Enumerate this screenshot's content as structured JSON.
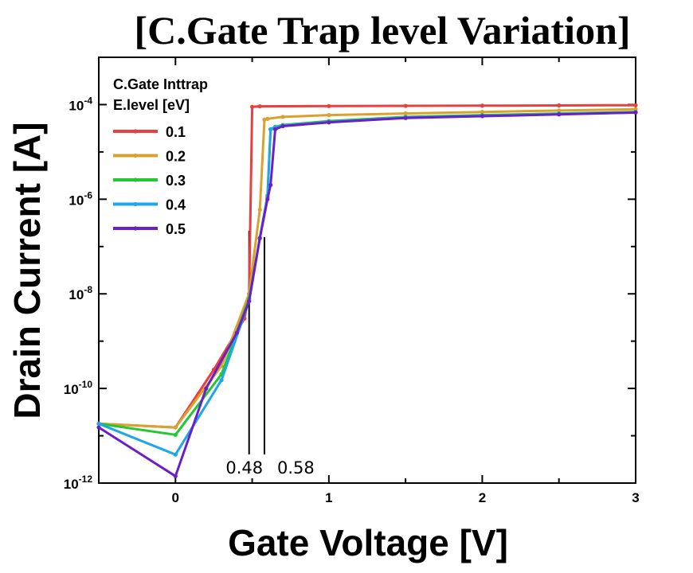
{
  "chart_data": {
    "type": "line",
    "title": "[C.Gate Trap level Variation]",
    "xlabel": "Gate Voltage [V]",
    "ylabel": "Drain Current [A]",
    "xlim": [
      -0.5,
      3
    ],
    "ylim_log10": [
      -12,
      -3
    ],
    "y_scale": "log",
    "x_ticks": [
      0,
      1,
      2,
      3
    ],
    "y_ticks": [
      {
        "exp": -12,
        "base": "10",
        "power": "-12"
      },
      {
        "exp": -10,
        "base": "10",
        "power": "-10"
      },
      {
        "exp": -8,
        "base": "10",
        "power": "-8"
      },
      {
        "exp": -6,
        "base": "10",
        "power": "-6"
      },
      {
        "exp": -4,
        "base": "10",
        "power": "-4"
      }
    ],
    "legend": {
      "title_lines": [
        "C.Gate Inttrap",
        "E.level [eV]"
      ],
      "placement": "top-left"
    },
    "series": [
      {
        "name": "0.1",
        "color": "#e8403f",
        "x": [
          -0.5,
          0.0,
          0.25,
          0.45,
          0.48,
          0.5,
          0.55,
          1.0,
          1.5,
          2.0,
          2.5,
          3.0
        ],
        "y": [
          1.8e-11,
          1.5e-11,
          2.5e-10,
          3e-09,
          1e-08,
          9e-05,
          9.2e-05,
          9.3e-05,
          9.4e-05,
          9.5e-05,
          9.6e-05,
          9.7e-05
        ]
      },
      {
        "name": "0.2",
        "color": "#daa12e",
        "x": [
          -0.5,
          0.0,
          0.3,
          0.48,
          0.55,
          0.58,
          0.6,
          0.7,
          1.0,
          1.5,
          2.0,
          2.5,
          3.0
        ],
        "y": [
          1.8e-11,
          1.5e-11,
          3e-10,
          1e-08,
          6e-07,
          4.8e-05,
          5e-05,
          5.5e-05,
          6e-05,
          6.5e-05,
          7e-05,
          7.5e-05,
          8e-05
        ]
      },
      {
        "name": "0.3",
        "color": "#22c832",
        "x": [
          -0.5,
          0.0,
          0.3,
          0.48,
          0.55,
          0.6,
          0.62,
          0.65,
          0.7,
          1.0,
          1.5,
          2.0,
          2.5,
          3.0
        ],
        "y": [
          1.8e-11,
          1.05e-11,
          2e-10,
          8e-09,
          1.5e-07,
          1.2e-06,
          3e-05,
          3.4e-05,
          3.7e-05,
          4.5e-05,
          5.5e-05,
          6e-05,
          6.5e-05,
          7e-05
        ]
      },
      {
        "name": "0.4",
        "color": "#1ea6e8",
        "x": [
          -0.5,
          0.0,
          0.3,
          0.48,
          0.55,
          0.6,
          0.62,
          0.65,
          0.7,
          1.0,
          1.5,
          2.0,
          2.5,
          3.0
        ],
        "y": [
          1.8e-11,
          4e-12,
          1.5e-10,
          7e-09,
          1.5e-07,
          1.1e-06,
          3e-05,
          3.3e-05,
          3.6e-05,
          4.3e-05,
          5.3e-05,
          5.8e-05,
          6.3e-05,
          6.8e-05
        ]
      },
      {
        "name": "0.5",
        "color": "#6b1fc8",
        "x": [
          -0.5,
          0.0,
          0.2,
          0.4,
          0.48,
          0.55,
          0.6,
          0.62,
          0.65,
          0.7,
          1.0,
          1.5,
          2.0,
          2.5,
          3.0
        ],
        "y": [
          1.5e-11,
          1.4e-12,
          1e-10,
          1.5e-09,
          7e-09,
          1.5e-07,
          1e-06,
          2e-06,
          3e-05,
          3.5e-05,
          4.2e-05,
          5.2e-05,
          5.7e-05,
          6.2e-05,
          6.8e-05
        ]
      }
    ],
    "annotations": [
      {
        "text": "0.48",
        "x": 0.48
      },
      {
        "text": "0.58",
        "x": 0.58
      }
    ],
    "annotation_line_top_y": 2e-07
  }
}
